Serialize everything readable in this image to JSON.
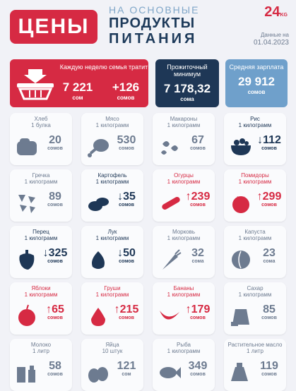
{
  "header": {
    "brand": "ЦЕНЫ",
    "line1": "НА ОСНОВНЫЕ",
    "line2": "ПРОДУКТЫ",
    "line3": "ПИТАНИЯ",
    "logo": "24",
    "logo_sub": "KG",
    "date_label": "Данные на",
    "date": "01.04.2023"
  },
  "summary": {
    "weekly_label": "Каждую неделю семья тратит",
    "weekly_value": "7 221",
    "weekly_unit": "сом",
    "weekly_change": "+126",
    "weekly_change_unit": "сомов",
    "min_label": "Прожиточный минимум",
    "min_value": "7 178,32",
    "min_unit": "сома",
    "salary_label": "Средняя зарплата",
    "salary_value": "29 912",
    "salary_unit": "сомов"
  },
  "products": [
    {
      "name": "Хлеб",
      "qty": "1 булка",
      "price": "20",
      "unit": "сомов",
      "trend": "same",
      "icon": "bread-icon"
    },
    {
      "name": "Мясо",
      "qty": "1 килограмм",
      "price": "530",
      "unit": "сомов",
      "trend": "same",
      "icon": "meat-icon"
    },
    {
      "name": "Макароны",
      "qty": "1 килограмм",
      "price": "67",
      "unit": "сомов",
      "trend": "same",
      "icon": "pasta-icon"
    },
    {
      "name": "Рис",
      "qty": "1 килограмм",
      "price": "↓112",
      "unit": "сомов",
      "trend": "down",
      "icon": "rice-icon"
    },
    {
      "name": "Гречка",
      "qty": "1 килограмм",
      "price": "89",
      "unit": "сомов",
      "trend": "same",
      "icon": "buckwheat-icon"
    },
    {
      "name": "Картофель",
      "qty": "1 килограмм",
      "price": "↓35",
      "unit": "сомов",
      "trend": "down",
      "icon": "potato-icon"
    },
    {
      "name": "Огурцы",
      "qty": "1 килограмм",
      "price": "↑239",
      "unit": "сомов",
      "trend": "up",
      "icon": "cucumber-icon"
    },
    {
      "name": "Помидоры",
      "qty": "1 килограмм",
      "price": "↑299",
      "unit": "сомов",
      "trend": "up",
      "icon": "tomato-icon"
    },
    {
      "name": "Перец",
      "qty": "1 килограмм",
      "price": "↓325",
      "unit": "сомов",
      "trend": "down",
      "icon": "pepper-icon"
    },
    {
      "name": "Лук",
      "qty": "1 килограмм",
      "price": "↓50",
      "unit": "сомов",
      "trend": "down",
      "icon": "onion-icon"
    },
    {
      "name": "Морковь",
      "qty": "1 килограмм",
      "price": "32",
      "unit": "сома",
      "trend": "same",
      "icon": "carrot-icon"
    },
    {
      "name": "Капуста",
      "qty": "1 килограмм",
      "price": "23",
      "unit": "сома",
      "trend": "same",
      "icon": "cabbage-icon"
    },
    {
      "name": "Яблоки",
      "qty": "1 килограмм",
      "price": "↑65",
      "unit": "сомов",
      "trend": "up",
      "icon": "apple-icon"
    },
    {
      "name": "Груши",
      "qty": "1 килограмм",
      "price": "↑215",
      "unit": "сомов",
      "trend": "up",
      "icon": "pear-icon"
    },
    {
      "name": "Бананы",
      "qty": "1 килограмм",
      "price": "↑179",
      "unit": "сомов",
      "trend": "up",
      "icon": "banana-icon"
    },
    {
      "name": "Сахар",
      "qty": "1 килограмм",
      "price": "85",
      "unit": "сомов",
      "trend": "same",
      "icon": "sugar-icon"
    },
    {
      "name": "Молоко",
      "qty": "1 литр",
      "price": "58",
      "unit": "сомов",
      "trend": "same",
      "icon": "milk-icon"
    },
    {
      "name": "Яйца",
      "qty": "10 штук",
      "price": "121",
      "unit": "сом",
      "trend": "same",
      "icon": "eggs-icon"
    },
    {
      "name": "Рыба",
      "qty": "1 килограмм",
      "price": "349",
      "unit": "сомов",
      "trend": "same",
      "icon": "fish-icon"
    },
    {
      "name": "Растительное масло",
      "qty": "1 литр",
      "price": "119",
      "unit": "сомов",
      "trend": "same",
      "icon": "oil-icon"
    }
  ],
  "colors": {
    "red": "#d62a43",
    "navy": "#1e3756",
    "gray": "#6d7b90",
    "lightblue": "#6fa0cb"
  }
}
